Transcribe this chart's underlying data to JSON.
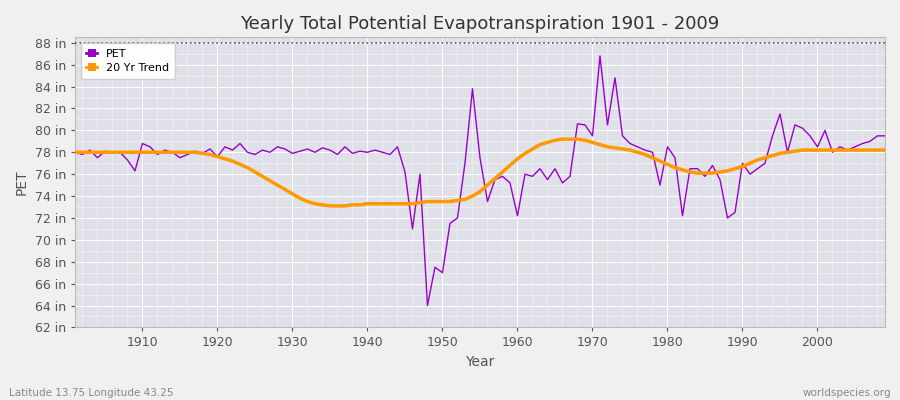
{
  "title": "Yearly Total Potential Evapotranspiration 1901 - 2009",
  "xlabel": "Year",
  "ylabel": "PET",
  "xlim": [
    1901,
    2009
  ],
  "ylim": [
    62,
    88.5
  ],
  "yticks": [
    62,
    64,
    66,
    68,
    70,
    72,
    74,
    76,
    78,
    80,
    82,
    84,
    86,
    88
  ],
  "xticks": [
    1910,
    1920,
    1930,
    1940,
    1950,
    1960,
    1970,
    1980,
    1990,
    2000
  ],
  "pet_color": "#9900cc",
  "trend_color": "#ff9900",
  "bg_color": "#f0f0f0",
  "plot_bg_color": "#e0e0e8",
  "grid_color": "#ffffff",
  "title_fontsize": 13,
  "axis_fontsize": 9,
  "label_fontsize": 10,
  "bottom_left_text": "Latitude 13.75 Longitude 43.25",
  "bottom_right_text": "worldspecies.org",
  "pet_values": [
    78.0,
    77.8,
    78.2,
    77.5,
    78.1,
    77.9,
    78.0,
    77.3,
    76.3,
    78.8,
    78.5,
    77.8,
    78.2,
    78.0,
    77.5,
    77.8,
    78.1,
    77.9,
    78.3,
    77.6,
    78.5,
    78.2,
    78.8,
    78.0,
    77.8,
    78.2,
    78.0,
    78.5,
    78.3,
    77.9,
    78.1,
    78.3,
    78.0,
    78.4,
    78.2,
    77.8,
    78.5,
    77.9,
    78.1,
    78.0,
    78.2,
    78.0,
    77.8,
    78.5,
    76.2,
    71.0,
    76.0,
    64.0,
    67.5,
    67.0,
    71.5,
    72.0,
    77.0,
    83.8,
    77.5,
    73.5,
    75.5,
    75.8,
    75.2,
    72.2,
    76.0,
    75.8,
    76.5,
    75.5,
    76.5,
    75.2,
    75.8,
    80.6,
    80.5,
    79.5,
    86.8,
    80.5,
    84.8,
    79.5,
    78.8,
    78.5,
    78.2,
    78.0,
    75.0,
    78.5,
    77.5,
    72.2,
    76.5,
    76.5,
    75.8,
    76.8,
    75.5,
    72.0,
    72.5,
    77.0,
    76.0,
    76.5,
    77.0,
    79.5,
    81.5,
    78.0,
    80.5,
    80.2,
    79.5,
    78.5,
    80.0,
    78.0,
    78.5,
    78.2,
    78.5,
    78.8,
    79.0,
    79.5,
    79.5
  ],
  "trend_values": [
    78.0,
    78.0,
    78.0,
    78.0,
    78.0,
    78.0,
    78.0,
    78.0,
    78.0,
    78.0,
    78.0,
    78.0,
    78.0,
    78.0,
    78.0,
    78.0,
    78.0,
    77.9,
    77.8,
    77.6,
    77.4,
    77.2,
    76.9,
    76.6,
    76.2,
    75.8,
    75.4,
    75.0,
    74.6,
    74.2,
    73.8,
    73.5,
    73.3,
    73.2,
    73.1,
    73.1,
    73.1,
    73.2,
    73.2,
    73.3,
    73.3,
    73.3,
    73.3,
    73.3,
    73.3,
    73.3,
    73.4,
    73.5,
    73.5,
    73.5,
    73.5,
    73.6,
    73.7,
    74.0,
    74.4,
    75.0,
    75.6,
    76.2,
    76.8,
    77.4,
    77.9,
    78.3,
    78.7,
    78.9,
    79.1,
    79.2,
    79.2,
    79.2,
    79.1,
    78.9,
    78.7,
    78.5,
    78.4,
    78.3,
    78.2,
    78.0,
    77.8,
    77.5,
    77.2,
    76.9,
    76.6,
    76.4,
    76.2,
    76.1,
    76.1,
    76.1,
    76.2,
    76.3,
    76.5,
    76.7,
    77.0,
    77.3,
    77.5,
    77.7,
    77.9,
    78.0,
    78.1,
    78.2,
    78.2,
    78.2,
    78.2,
    78.2,
    78.2,
    78.2,
    78.2,
    78.2,
    78.2,
    78.2,
    78.2
  ]
}
